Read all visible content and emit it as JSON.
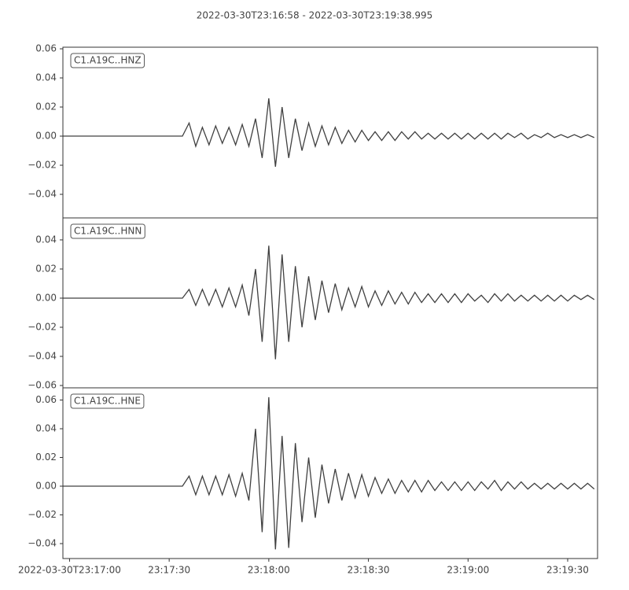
{
  "chart_data": [
    {
      "type": "line",
      "title": "2022-03-30T23:16:58  -  2022-03-30T23:19:38.995",
      "label": "C1.A19C..HNZ",
      "color": "#404040",
      "x": [
        0,
        2,
        4,
        6,
        8,
        10,
        12,
        14,
        16,
        18,
        20,
        22,
        24,
        26,
        28,
        30,
        32,
        34,
        36,
        38,
        40,
        42,
        44,
        46,
        48,
        50,
        52,
        54,
        56,
        58,
        60,
        62,
        64,
        66,
        68,
        70,
        72,
        74,
        76,
        78,
        80,
        82,
        84,
        86,
        88,
        90,
        92,
        94,
        96,
        98,
        100,
        102,
        104,
        106,
        108,
        110,
        112,
        114,
        116,
        118,
        120,
        122,
        124,
        126,
        128,
        130,
        132,
        134,
        136,
        138,
        140,
        142,
        144,
        146,
        148,
        150,
        152,
        154,
        156,
        158,
        160
      ],
      "values": [
        0,
        0,
        0,
        0,
        0,
        0,
        0,
        0,
        0,
        0,
        0,
        0,
        0,
        0,
        0,
        0,
        0,
        0,
        0,
        0.009,
        -0.007,
        0.006,
        -0.006,
        0.007,
        -0.005,
        0.006,
        -0.006,
        0.008,
        -0.007,
        0.012,
        -0.015,
        0.026,
        -0.021,
        0.02,
        -0.015,
        0.012,
        -0.01,
        0.009,
        -0.007,
        0.007,
        -0.006,
        0.006,
        -0.005,
        0.004,
        -0.004,
        0.004,
        -0.003,
        0.003,
        -0.003,
        0.003,
        -0.003,
        0.003,
        -0.002,
        0.003,
        -0.002,
        0.002,
        -0.002,
        0.002,
        -0.002,
        0.002,
        -0.002,
        0.002,
        -0.002,
        0.002,
        -0.002,
        0.002,
        -0.002,
        0.002,
        -0.001,
        0.002,
        -0.002,
        0.001,
        -0.001,
        0.002,
        -0.001,
        0.001,
        -0.001,
        0.001,
        -0.001,
        0.001,
        -0.001
      ],
      "xlim": [
        0,
        160.995
      ],
      "ylim": [
        -0.0562,
        0.0611
      ],
      "yticks": [
        {
          "value": -0.04,
          "label": "−0.04"
        },
        {
          "value": -0.02,
          "label": "−0.02"
        },
        {
          "value": 0,
          "label": "0.00"
        },
        0.02,
        0.04,
        0.06
      ]
    },
    {
      "type": "line",
      "label": "C1.A19C..HNN",
      "color": "#404040",
      "x": [
        0,
        2,
        4,
        6,
        8,
        10,
        12,
        14,
        16,
        18,
        20,
        22,
        24,
        26,
        28,
        30,
        32,
        34,
        36,
        38,
        40,
        42,
        44,
        46,
        48,
        50,
        52,
        54,
        56,
        58,
        60,
        62,
        64,
        66,
        68,
        70,
        72,
        74,
        76,
        78,
        80,
        82,
        84,
        86,
        88,
        90,
        92,
        94,
        96,
        98,
        100,
        102,
        104,
        106,
        108,
        110,
        112,
        114,
        116,
        118,
        120,
        122,
        124,
        126,
        128,
        130,
        132,
        134,
        136,
        138,
        140,
        142,
        144,
        146,
        148,
        150,
        152,
        154,
        156,
        158,
        160
      ],
      "values": [
        0,
        0,
        0,
        0,
        0,
        0,
        0,
        0,
        0,
        0,
        0,
        0,
        0,
        0,
        0,
        0,
        0,
        0,
        0,
        0.006,
        -0.005,
        0.006,
        -0.005,
        0.006,
        -0.006,
        0.007,
        -0.006,
        0.009,
        -0.012,
        0.02,
        -0.03,
        0.036,
        -0.042,
        0.03,
        -0.03,
        0.022,
        -0.02,
        0.015,
        -0.015,
        0.012,
        -0.01,
        0.01,
        -0.008,
        0.007,
        -0.006,
        0.008,
        -0.006,
        0.005,
        -0.005,
        0.005,
        -0.004,
        0.004,
        -0.004,
        0.004,
        -0.003,
        0.003,
        -0.003,
        0.003,
        -0.003,
        0.003,
        -0.003,
        0.003,
        -0.002,
        0.002,
        -0.003,
        0.003,
        -0.002,
        0.003,
        -0.002,
        0.002,
        -0.002,
        0.002,
        -0.002,
        0.002,
        -0.002,
        0.002,
        -0.002,
        0.002,
        -0.001,
        0.002,
        -0.001
      ],
      "xlim": [
        0,
        160.995
      ],
      "ylim": [
        -0.0616,
        0.0551
      ],
      "yticks": [
        {
          "value": -0.06,
          "label": "−0.06"
        },
        {
          "value": -0.04,
          "label": "−0.04"
        },
        {
          "value": -0.02,
          "label": "−0.02"
        },
        {
          "value": 0,
          "label": "0.00"
        },
        0.02,
        0.04
      ]
    },
    {
      "type": "line",
      "label": "C1.A19C..HNE",
      "color": "#404040",
      "x": [
        0,
        2,
        4,
        6,
        8,
        10,
        12,
        14,
        16,
        18,
        20,
        22,
        24,
        26,
        28,
        30,
        32,
        34,
        36,
        38,
        40,
        42,
        44,
        46,
        48,
        50,
        52,
        54,
        56,
        58,
        60,
        62,
        64,
        66,
        68,
        70,
        72,
        74,
        76,
        78,
        80,
        82,
        84,
        86,
        88,
        90,
        92,
        94,
        96,
        98,
        100,
        102,
        104,
        106,
        108,
        110,
        112,
        114,
        116,
        118,
        120,
        122,
        124,
        126,
        128,
        130,
        132,
        134,
        136,
        138,
        140,
        142,
        144,
        146,
        148,
        150,
        152,
        154,
        156,
        158,
        160
      ],
      "values": [
        0,
        0,
        0,
        0,
        0,
        0,
        0,
        0,
        0,
        0,
        0,
        0,
        0,
        0,
        0,
        0,
        0,
        0,
        0,
        0.007,
        -0.006,
        0.007,
        -0.006,
        0.007,
        -0.006,
        0.008,
        -0.007,
        0.009,
        -0.01,
        0.04,
        -0.032,
        0.062,
        -0.044,
        0.035,
        -0.043,
        0.03,
        -0.025,
        0.02,
        -0.022,
        0.015,
        -0.012,
        0.012,
        -0.01,
        0.009,
        -0.008,
        0.008,
        -0.007,
        0.006,
        -0.005,
        0.005,
        -0.005,
        0.004,
        -0.004,
        0.004,
        -0.004,
        0.004,
        -0.003,
        0.003,
        -0.003,
        0.003,
        -0.003,
        0.003,
        -0.003,
        0.003,
        -0.002,
        0.004,
        -0.003,
        0.003,
        -0.002,
        0.003,
        -0.002,
        0.002,
        -0.002,
        0.002,
        -0.002,
        0.002,
        -0.002,
        0.002,
        -0.002,
        0.002,
        -0.002
      ],
      "xlim": [
        0,
        160.995
      ],
      "ylim": [
        -0.0504,
        0.0685
      ],
      "yticks": [
        {
          "value": -0.04,
          "label": "−0.04"
        },
        {
          "value": -0.02,
          "label": "−0.02"
        },
        {
          "value": 0,
          "label": "0.00"
        },
        0.02,
        0.04,
        0.06
      ],
      "xticks": [
        {
          "value": 2,
          "label": "2022-03-30T23:17:00"
        },
        {
          "value": 32,
          "label": "23:17:30"
        },
        {
          "value": 62,
          "label": "23:18:00"
        },
        {
          "value": 92,
          "label": "23:18:30"
        },
        {
          "value": 122,
          "label": "23:19:00"
        },
        {
          "value": 152,
          "label": "23:19:30"
        }
      ]
    }
  ]
}
